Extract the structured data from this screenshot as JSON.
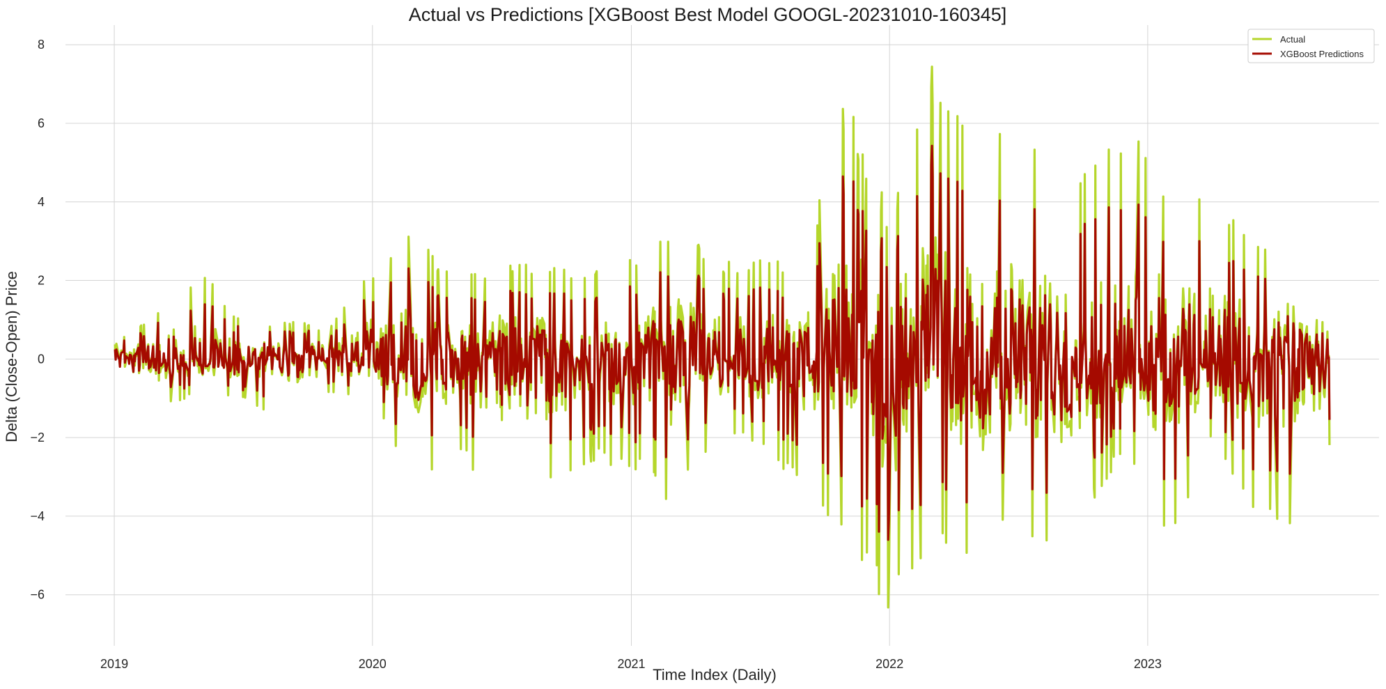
{
  "chart_data": {
    "type": "line",
    "title": "Actual vs Predictions [XGBoost Best Model GOOGL-20231010-160345]",
    "xlabel": "Time Index (Daily)",
    "ylabel": "Delta (Close-Open) Price",
    "x_start": "2019-01-02",
    "x_end": "2023-09-15",
    "xlim": [
      "2018-10-24",
      "2023-11-24"
    ],
    "ylim": [
      -7.3,
      8.5
    ],
    "x_ticks": [
      "2019",
      "2020",
      "2021",
      "2022",
      "2023"
    ],
    "y_ticks": [
      8,
      6,
      4,
      2,
      0,
      -2,
      -4,
      -6
    ],
    "grid": true,
    "legend_position": "top-right",
    "series": [
      {
        "name": "Actual",
        "color": "#b5d62b"
      },
      {
        "name": "XGBoost Predictions",
        "color": "#a50a00"
      }
    ],
    "envelope_actual": [
      {
        "date": "2019-01-02",
        "hi": 0.4,
        "lo": -0.3
      },
      {
        "date": "2019-03-01",
        "hi": 1.2,
        "lo": -1.3
      },
      {
        "date": "2019-05-03",
        "hi": 2.4,
        "lo": -0.9
      },
      {
        "date": "2019-07-01",
        "hi": 0.9,
        "lo": -1.1
      },
      {
        "date": "2019-09-03",
        "hi": 1.0,
        "lo": -1.6
      },
      {
        "date": "2019-11-01",
        "hi": 0.8,
        "lo": -0.9
      },
      {
        "date": "2020-01-02",
        "hi": 2.3,
        "lo": -1.2
      },
      {
        "date": "2020-03-02",
        "hi": 3.3,
        "lo": -3.1
      },
      {
        "date": "2020-05-01",
        "hi": 2.0,
        "lo": -2.5
      },
      {
        "date": "2020-07-01",
        "hi": 2.5,
        "lo": -3.5
      },
      {
        "date": "2020-09-01",
        "hi": 2.5,
        "lo": -3.5
      },
      {
        "date": "2020-11-02",
        "hi": 2.2,
        "lo": -2.6
      },
      {
        "date": "2021-01-04",
        "hi": 2.7,
        "lo": -2.8
      },
      {
        "date": "2021-03-01",
        "hi": 3.6,
        "lo": -3.8
      },
      {
        "date": "2021-05-03",
        "hi": 2.5,
        "lo": -2.0
      },
      {
        "date": "2021-07-01",
        "hi": 2.6,
        "lo": -2.3
      },
      {
        "date": "2021-09-01",
        "hi": 2.4,
        "lo": -3.3
      },
      {
        "date": "2021-11-01",
        "hi": 6.8,
        "lo": -4.6
      },
      {
        "date": "2022-01-03",
        "hi": 3.6,
        "lo": -6.6
      },
      {
        "date": "2022-02-25",
        "hi": 7.7,
        "lo": -5.1
      },
      {
        "date": "2022-05-02",
        "hi": 5.3,
        "lo": -5.4
      },
      {
        "date": "2022-07-01",
        "hi": 6.2,
        "lo": -4.4
      },
      {
        "date": "2022-09-01",
        "hi": 4.0,
        "lo": -5.0
      },
      {
        "date": "2022-11-30",
        "hi": 6.2,
        "lo": -2.3
      },
      {
        "date": "2023-02-01",
        "hi": 4.4,
        "lo": -5.0
      },
      {
        "date": "2023-04-03",
        "hi": 4.1,
        "lo": -2.0
      },
      {
        "date": "2023-06-01",
        "hi": 3.2,
        "lo": -4.5
      },
      {
        "date": "2023-08-01",
        "hi": 3.1,
        "lo": -4.3
      },
      {
        "date": "2023-09-15",
        "hi": 3.6,
        "lo": -2.4
      }
    ]
  }
}
